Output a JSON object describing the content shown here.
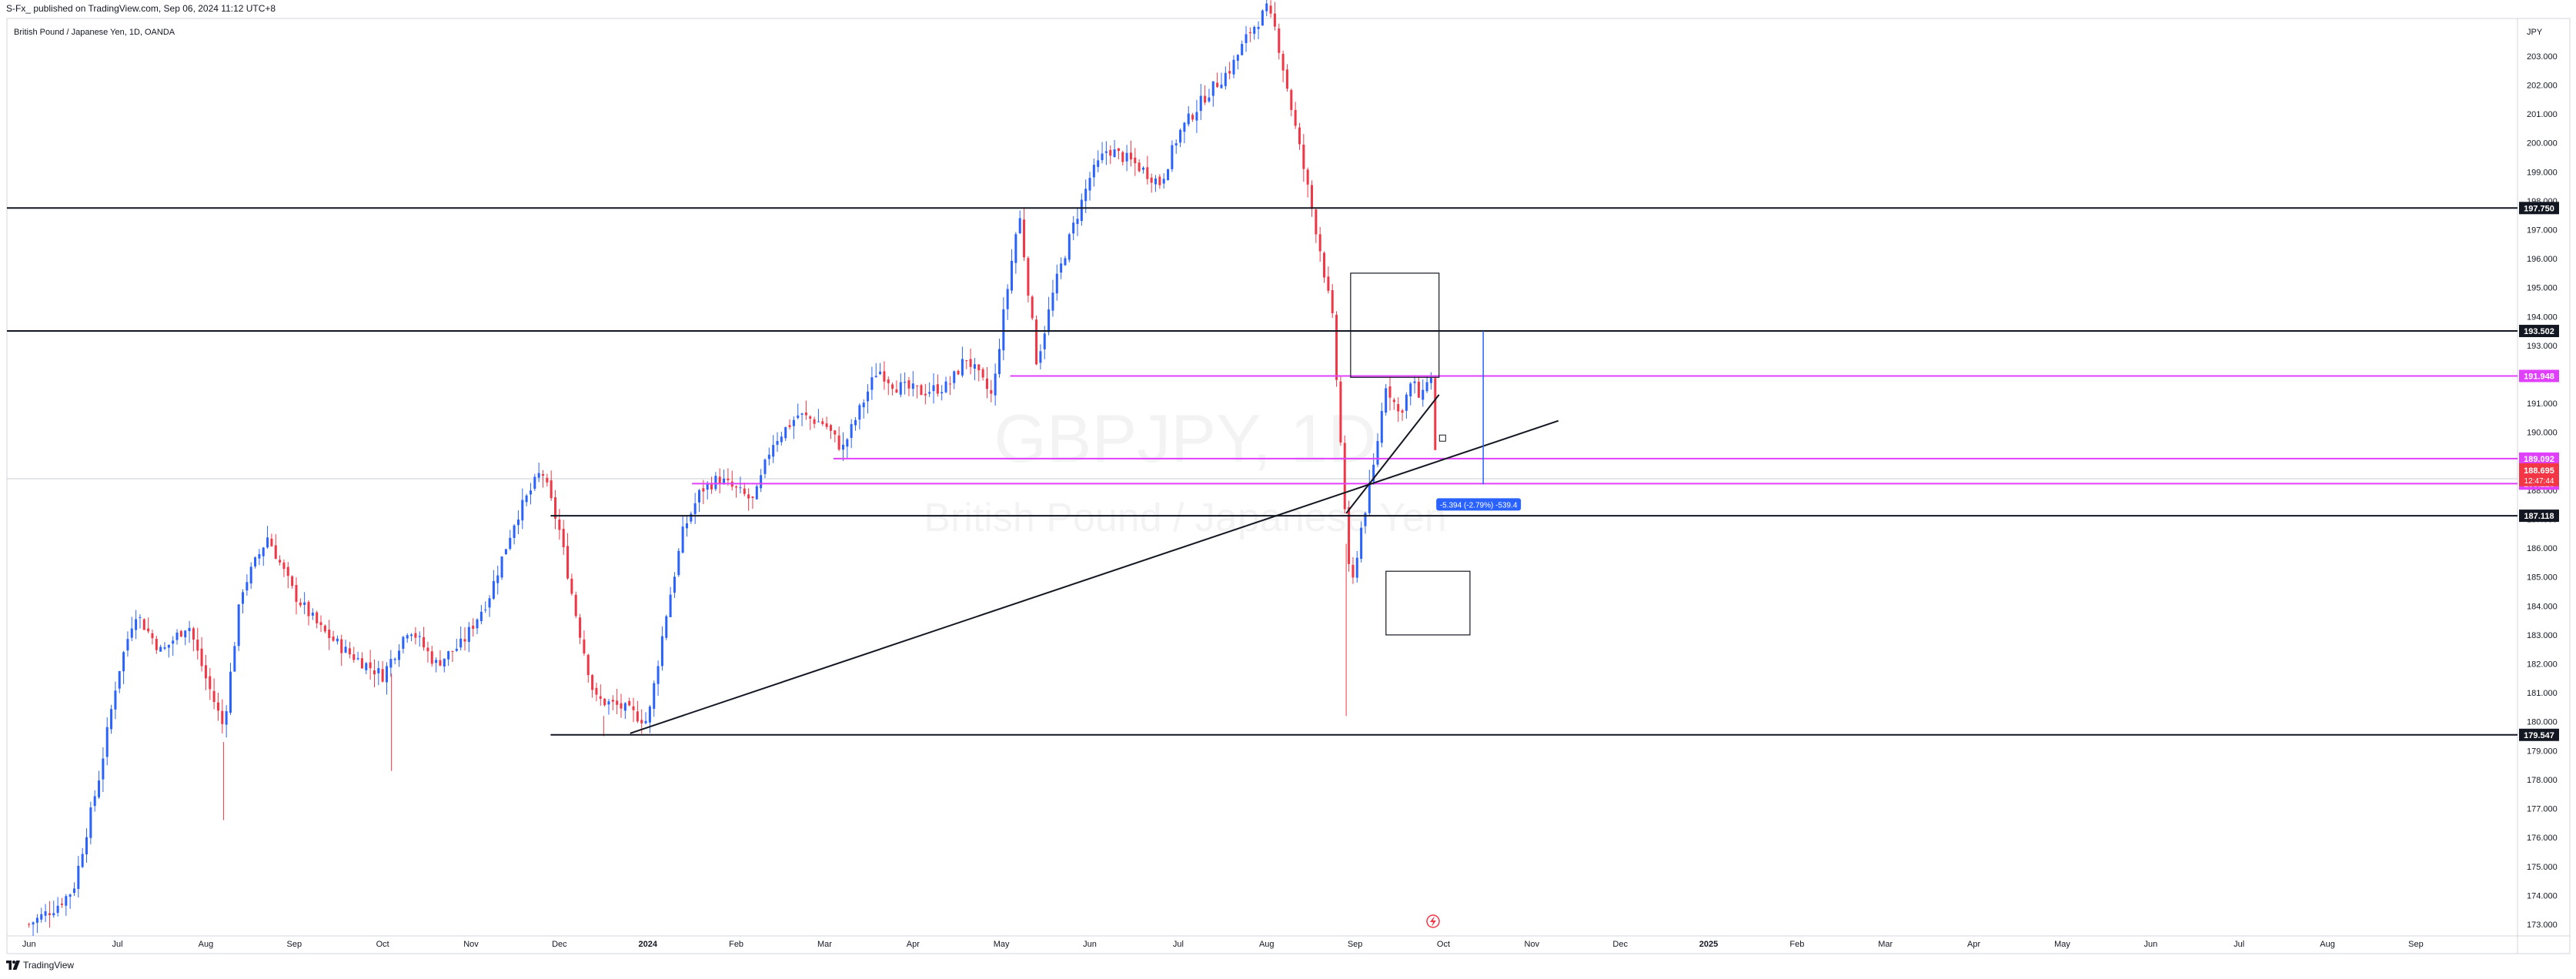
{
  "published_line": "S-Fx_ published on TradingView.com, Sep 06, 2024 11:12 UTC+8",
  "footer_brand": "TradingView",
  "chart_data": {
    "type": "candlestick",
    "symbol_title": "British Pound / Japanese Yen, 1D, OANDA",
    "watermark_symbol": "GBPJPY, 1D",
    "watermark_name": "British Pound / Japanese Yen",
    "currency_label": "JPY",
    "y_ticks": [
      "203.000",
      "202.000",
      "201.000",
      "200.000",
      "199.000",
      "198.000",
      "197.000",
      "196.000",
      "195.000",
      "194.000",
      "193.000",
      "192.000",
      "191.000",
      "190.000",
      "189.000",
      "188.000",
      "187.000",
      "186.000",
      "185.000",
      "184.000",
      "183.000",
      "182.000",
      "181.000",
      "180.000",
      "179.000",
      "178.000",
      "177.000",
      "176.000",
      "175.000",
      "174.000",
      "173.000"
    ],
    "x_ticks": [
      "Jun",
      "Jul",
      "Aug",
      "Sep",
      "Oct",
      "Nov",
      "Dec",
      "2024",
      "Feb",
      "Mar",
      "Apr",
      "May",
      "Jun",
      "Jul",
      "Aug",
      "Sep",
      "Oct",
      "Nov",
      "Dec",
      "2025",
      "Feb",
      "Mar",
      "Apr",
      "May",
      "Jun",
      "Jul",
      "Aug",
      "Sep"
    ],
    "x_tick_months": [
      0,
      1,
      2,
      3,
      4,
      5,
      6,
      7,
      8,
      9,
      10,
      11,
      12,
      13,
      14,
      15,
      16,
      17,
      18,
      19,
      20,
      21,
      22,
      23,
      24,
      25,
      26,
      27
    ],
    "y_range": [
      172.6,
      204.3
    ],
    "x_range_months": [
      -0.25,
      28.15
    ],
    "up_color": "#2962ff",
    "down_color": "#f23645",
    "price_path": [
      [
        0.0,
        173.0
      ],
      [
        0.3,
        173.6
      ],
      [
        0.5,
        174.2
      ],
      [
        0.8,
        178.2
      ],
      [
        1.0,
        181.6
      ],
      [
        1.2,
        183.8
      ],
      [
        1.5,
        182.4
      ],
      [
        1.8,
        183.4
      ],
      [
        2.0,
        181.5
      ],
      [
        2.2,
        179.8
      ],
      [
        2.4,
        184.5
      ],
      [
        2.7,
        186.4
      ],
      [
        3.0,
        184.4
      ],
      [
        3.3,
        183.2
      ],
      [
        3.6,
        182.4
      ],
      [
        4.0,
        181.6
      ],
      [
        4.3,
        183.3
      ],
      [
        4.6,
        182.0
      ],
      [
        4.9,
        182.7
      ],
      [
        5.2,
        184.3
      ],
      [
        5.5,
        187.0
      ],
      [
        5.8,
        188.7
      ],
      [
        6.0,
        186.6
      ],
      [
        6.2,
        183.5
      ],
      [
        6.4,
        180.8
      ],
      [
        6.7,
        180.5
      ],
      [
        7.0,
        180.0
      ],
      [
        7.2,
        183.6
      ],
      [
        7.4,
        186.6
      ],
      [
        7.6,
        188.0
      ],
      [
        7.8,
        188.4
      ],
      [
        8.0,
        188.0
      ],
      [
        8.2,
        187.6
      ],
      [
        8.4,
        189.6
      ],
      [
        8.7,
        190.6
      ],
      [
        9.0,
        190.3
      ],
      [
        9.2,
        189.4
      ],
      [
        9.4,
        190.8
      ],
      [
        9.6,
        192.2
      ],
      [
        9.8,
        191.6
      ],
      [
        10.1,
        191.4
      ],
      [
        10.4,
        191.6
      ],
      [
        10.6,
        192.6
      ],
      [
        10.9,
        191.2
      ],
      [
        11.0,
        193.6
      ],
      [
        11.2,
        197.6
      ],
      [
        11.4,
        192.4
      ],
      [
        11.6,
        195.0
      ],
      [
        11.8,
        197.0
      ],
      [
        12.0,
        198.8
      ],
      [
        12.2,
        199.8
      ],
      [
        12.5,
        199.3
      ],
      [
        12.8,
        198.6
      ],
      [
        13.0,
        200.3
      ],
      [
        13.3,
        201.6
      ],
      [
        13.6,
        202.6
      ],
      [
        13.8,
        203.8
      ],
      [
        14.0,
        204.6
      ],
      [
        14.1,
        203.9
      ],
      [
        14.2,
        202.4
      ],
      [
        14.4,
        199.4
      ],
      [
        14.6,
        196.4
      ],
      [
        14.75,
        193.8
      ],
      [
        14.85,
        189.0
      ],
      [
        14.95,
        184.3
      ],
      [
        15.05,
        186.4
      ],
      [
        15.2,
        188.6
      ],
      [
        15.35,
        191.7
      ],
      [
        15.5,
        190.6
      ],
      [
        15.65,
        191.8
      ],
      [
        15.75,
        191.0
      ],
      [
        15.85,
        192.4
      ],
      [
        15.9,
        189.6
      ],
      [
        15.95,
        188.7
      ]
    ],
    "lows_marker": [
      [
        2.2,
        176.6
      ],
      [
        14.9,
        180.2
      ],
      [
        4.1,
        178.3
      ],
      [
        6.5,
        179.5
      ]
    ],
    "horizontal_lines": [
      {
        "price": 197.75,
        "label": "197.750",
        "color": "#131722",
        "from_month": -0.25
      },
      {
        "price": 193.502,
        "label": "193.502",
        "color": "#131722",
        "from_month": -0.25
      },
      {
        "price": 187.118,
        "label": "187.118",
        "color": "#131722",
        "from_month": 5.9
      },
      {
        "price": 179.547,
        "label": "179.547",
        "color": "#131722",
        "from_month": 5.9
      }
    ],
    "magenta_lines": [
      {
        "price": 191.948,
        "label": "191.948",
        "from_month": 11.1
      },
      {
        "price": 189.092,
        "label": "189.092",
        "from_month": 9.1
      },
      {
        "price": 188.228,
        "label": "188.228",
        "from_month": 7.5
      }
    ],
    "current_price": {
      "price": 188.695,
      "label": "188.695",
      "countdown": "12:47:44",
      "color": "#f23645"
    },
    "trendlines": [
      {
        "from": [
          6.8,
          179.6
        ],
        "to": [
          17.3,
          190.4
        ]
      },
      {
        "from": [
          14.9,
          187.2
        ],
        "to": [
          15.95,
          191.3
        ]
      }
    ],
    "rectangles": [
      {
        "m1": 14.95,
        "p1": 195.5,
        "m2": 15.95,
        "p2": 191.9
      },
      {
        "m1": 15.35,
        "p1": 185.2,
        "m2": 16.3,
        "p2": 183.0
      }
    ],
    "measure": {
      "month": 16.45,
      "top": 193.5,
      "bottom": 188.2,
      "label": "-5.394 (-2.79%) -539.4"
    },
    "small_square": {
      "month": 15.99,
      "price": 189.8
    }
  }
}
